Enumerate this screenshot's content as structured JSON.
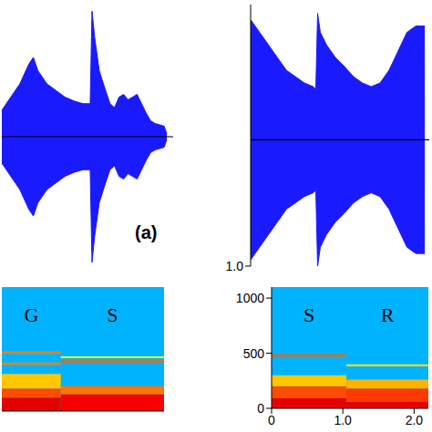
{
  "panel_label": "(a)",
  "chart_data": [
    {
      "type": "waveform",
      "color": "#1a1aff",
      "xlim": [
        0,
        1.9
      ],
      "ylim": [
        -1,
        1
      ],
      "tick_labels": false,
      "x": [
        0,
        0.1,
        0.2,
        0.3,
        0.35,
        0.4,
        0.5,
        0.6,
        0.7,
        0.8,
        0.9,
        0.98,
        1.0,
        1.03,
        1.08,
        1.15,
        1.2,
        1.25,
        1.3,
        1.35,
        1.4,
        1.45,
        1.5,
        1.55,
        1.6,
        1.65,
        1.7,
        1.75,
        1.8,
        1.83
      ],
      "values": [
        0.2,
        0.3,
        0.4,
        0.55,
        0.6,
        0.5,
        0.4,
        0.35,
        0.3,
        0.27,
        0.25,
        0.25,
        0.95,
        0.75,
        0.5,
        0.35,
        0.25,
        0.22,
        0.3,
        0.32,
        0.28,
        0.3,
        0.32,
        0.25,
        0.18,
        0.12,
        0.1,
        0.09,
        0.08,
        0.02
      ]
    },
    {
      "type": "waveform",
      "color": "#1a1aff",
      "xlim": [
        0,
        2.0
      ],
      "ylim": [
        1,
        -1.07
      ],
      "yticks": [
        {
          "value": 1,
          "label": "1.0"
        }
      ],
      "tick_labels": "y",
      "x": [
        0,
        0.05,
        0.1,
        0.2,
        0.3,
        0.4,
        0.5,
        0.6,
        0.7,
        0.73,
        0.75,
        0.78,
        0.85,
        0.95,
        1.05,
        1.15,
        1.25,
        1.35,
        1.45,
        1.55,
        1.65,
        1.75,
        1.85,
        1.95
      ],
      "values": [
        0.95,
        0.9,
        0.85,
        0.75,
        0.65,
        0.55,
        0.5,
        0.45,
        0.42,
        0.4,
        1.0,
        0.85,
        0.75,
        0.65,
        0.58,
        0.5,
        0.45,
        0.42,
        0.45,
        0.55,
        0.7,
        0.85,
        0.9,
        0.9
      ]
    },
    {
      "type": "spectrogram",
      "xlim": [
        0,
        2.2
      ],
      "ylim": [
        0,
        1100
      ],
      "tick_labels": false,
      "background": 0.3,
      "segments": [
        {
          "label": "G",
          "start": 0,
          "end": 0.8,
          "bands": [
            {
              "f0": 0,
              "f1": 120,
              "level": 0.9
            },
            {
              "f0": 120,
              "f1": 200,
              "level": 0.8
            },
            {
              "f0": 200,
              "f1": 330,
              "level": 0.68
            },
            {
              "f0": 410,
              "f1": 430,
              "level": 0.75
            },
            {
              "f0": 510,
              "f1": 530,
              "level": 0.75
            }
          ]
        },
        {
          "label": "S",
          "start": 0.8,
          "end": 2.2,
          "bands": [
            {
              "f0": 0,
              "f1": 150,
              "level": 0.88
            },
            {
              "f0": 150,
              "f1": 220,
              "level": 0.76
            },
            {
              "f0": 430,
              "f1": 450,
              "level": 0.78
            },
            {
              "f0": 470,
              "f1": 485,
              "level": 0.62
            }
          ]
        }
      ]
    },
    {
      "type": "spectrogram",
      "xlim": [
        0,
        2.2
      ],
      "ylim": [
        0,
        1100
      ],
      "background": 0.3,
      "xticks": [
        0,
        {
          "value": 1,
          "label": "1.0"
        },
        {
          "value": 2,
          "label": "2.0"
        }
      ],
      "yticks": [
        0,
        500,
        1000
      ],
      "segments": [
        {
          "label": "S",
          "start": 0,
          "end": 1.05,
          "bands": [
            {
              "f0": 0,
              "f1": 90,
              "level": 0.9
            },
            {
              "f0": 90,
              "f1": 200,
              "level": 0.8
            },
            {
              "f0": 200,
              "f1": 300,
              "level": 0.68
            },
            {
              "f0": 470,
              "f1": 490,
              "level": 0.78
            }
          ]
        },
        {
          "label": "R",
          "start": 1.05,
          "end": 2.2,
          "bands": [
            {
              "f0": 0,
              "f1": 60,
              "level": 0.9
            },
            {
              "f0": 60,
              "f1": 180,
              "level": 0.82
            },
            {
              "f0": 180,
              "f1": 260,
              "level": 0.7
            },
            {
              "f0": 380,
              "f1": 400,
              "level": 0.66
            }
          ]
        }
      ]
    }
  ]
}
